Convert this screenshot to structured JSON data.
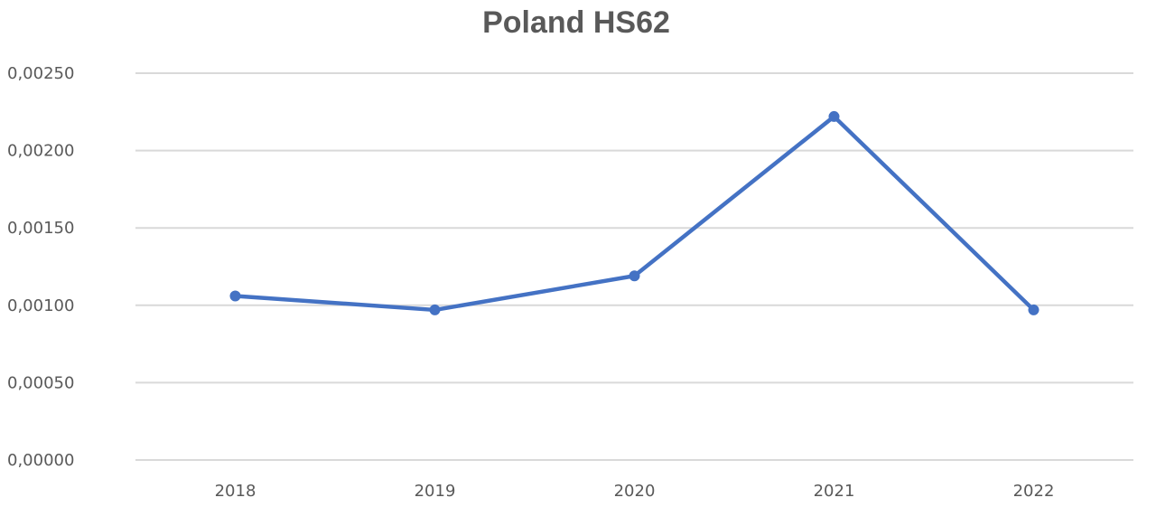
{
  "chart_data": {
    "type": "line",
    "title": "Poland HS62",
    "xlabel": "",
    "ylabel": "",
    "categories": [
      "2018",
      "2019",
      "2020",
      "2021",
      "2022"
    ],
    "y_ticks": [
      "0,00000",
      "0,00050",
      "0,00100",
      "0,00150",
      "0,00200",
      "0,00250"
    ],
    "ylim": [
      0,
      0.0025
    ],
    "grid": "horizontal",
    "legend": "none",
    "series": [
      {
        "name": "",
        "color": "#4472c4",
        "values": [
          0.00106,
          0.00097,
          0.00119,
          0.00222,
          0.00097
        ]
      }
    ]
  }
}
